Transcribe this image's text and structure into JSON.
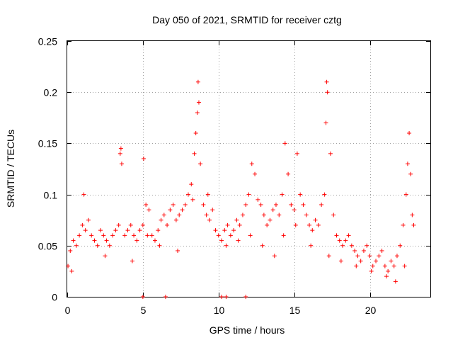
{
  "chart_data": {
    "type": "scatter",
    "title": "Day 050 of 2021, SRMTID for receiver cztg",
    "xlabel": "GPS time / hours",
    "ylabel": "SRMTID / TECUs",
    "xlim": [
      0,
      24
    ],
    "ylim": [
      0,
      0.25
    ],
    "grid": true,
    "marker": "plus",
    "color": "#ff0000",
    "xticks": [
      {
        "value": 0,
        "label": "0"
      },
      {
        "value": 5,
        "label": "5"
      },
      {
        "value": 10,
        "label": "10"
      },
      {
        "value": 15,
        "label": "15"
      },
      {
        "value": 20,
        "label": "20"
      }
    ],
    "yticks": [
      {
        "value": 0,
        "label": "0"
      },
      {
        "value": 0.05,
        "label": "0.05"
      },
      {
        "value": 0.1,
        "label": "0.1"
      },
      {
        "value": 0.15,
        "label": "0.15"
      },
      {
        "value": 0.2,
        "label": "0.2"
      },
      {
        "value": 0.25,
        "label": "0.25"
      }
    ],
    "series": [
      {
        "name": "SRMTID",
        "x": [
          0.05,
          0.2,
          0.4,
          0.6,
          0.8,
          1.0,
          1.2,
          1.4,
          1.6,
          1.8,
          2.0,
          2.2,
          2.4,
          2.6,
          2.8,
          3.0,
          3.2,
          3.4,
          3.5,
          3.55,
          3.6,
          3.8,
          4.0,
          4.2,
          4.4,
          4.6,
          4.8,
          5.0,
          5.05,
          5.2,
          5.4,
          5.6,
          5.8,
          6.0,
          6.2,
          6.4,
          6.6,
          6.8,
          7.0,
          7.2,
          7.4,
          7.6,
          7.8,
          8.0,
          8.2,
          8.4,
          8.5,
          8.6,
          8.65,
          8.7,
          8.8,
          9.0,
          9.2,
          9.4,
          9.6,
          9.8,
          10.0,
          10.2,
          10.4,
          10.6,
          10.8,
          11.0,
          11.2,
          11.4,
          11.6,
          11.8,
          12.0,
          12.2,
          12.4,
          12.6,
          12.8,
          13.0,
          13.2,
          13.4,
          13.6,
          13.8,
          14.0,
          14.2,
          14.4,
          14.6,
          14.8,
          15.0,
          15.2,
          15.4,
          15.6,
          15.8,
          16.0,
          16.2,
          16.4,
          16.6,
          16.8,
          17.0,
          17.1,
          17.15,
          17.2,
          17.4,
          17.6,
          17.8,
          18.0,
          18.2,
          18.4,
          18.6,
          18.8,
          19.0,
          19.2,
          19.4,
          19.6,
          19.8,
          20.0,
          20.2,
          20.4,
          20.6,
          20.8,
          21.0,
          21.2,
          21.4,
          21.6,
          21.8,
          22.0,
          22.2,
          22.4,
          22.5,
          22.6,
          22.7,
          22.8,
          22.9,
          0.3,
          1.1,
          2.5,
          4.3,
          5.3,
          6.1,
          7.3,
          8.3,
          9.3,
          10.5,
          11.3,
          12.1,
          12.9,
          13.7,
          14.3,
          15.1,
          16.1,
          17.3,
          18.1,
          19.1,
          20.1,
          21.1,
          21.7,
          22.3,
          5.0,
          6.5,
          10.2,
          10.5,
          11.8
        ],
        "y": [
          0.03,
          0.045,
          0.055,
          0.05,
          0.06,
          0.07,
          0.065,
          0.075,
          0.06,
          0.055,
          0.05,
          0.065,
          0.06,
          0.055,
          0.05,
          0.06,
          0.065,
          0.07,
          0.14,
          0.145,
          0.13,
          0.06,
          0.065,
          0.07,
          0.06,
          0.055,
          0.065,
          0.07,
          0.135,
          0.09,
          0.085,
          0.06,
          0.055,
          0.065,
          0.075,
          0.08,
          0.07,
          0.085,
          0.09,
          0.075,
          0.08,
          0.085,
          0.09,
          0.1,
          0.11,
          0.14,
          0.16,
          0.18,
          0.21,
          0.19,
          0.13,
          0.09,
          0.08,
          0.075,
          0.085,
          0.065,
          0.06,
          0.055,
          0.065,
          0.07,
          0.06,
          0.065,
          0.075,
          0.07,
          0.08,
          0.09,
          0.1,
          0.13,
          0.12,
          0.095,
          0.09,
          0.08,
          0.07,
          0.075,
          0.085,
          0.09,
          0.08,
          0.1,
          0.15,
          0.12,
          0.09,
          0.085,
          0.14,
          0.1,
          0.09,
          0.08,
          0.07,
          0.065,
          0.075,
          0.07,
          0.09,
          0.1,
          0.17,
          0.21,
          0.2,
          0.14,
          0.08,
          0.06,
          0.055,
          0.05,
          0.055,
          0.06,
          0.05,
          0.045,
          0.04,
          0.035,
          0.045,
          0.05,
          0.04,
          0.03,
          0.035,
          0.04,
          0.045,
          0.03,
          0.025,
          0.035,
          0.03,
          0.04,
          0.05,
          0.07,
          0.1,
          0.13,
          0.16,
          0.12,
          0.08,
          0.07,
          0.025,
          0.1,
          0.04,
          0.035,
          0.06,
          0.05,
          0.045,
          0.095,
          0.1,
          0.05,
          0.055,
          0.06,
          0.05,
          0.04,
          0.06,
          0.07,
          0.05,
          0.04,
          0.035,
          0.03,
          0.025,
          0.02,
          0.015,
          0.03,
          0.0,
          0.0,
          0.0,
          0.0,
          0.0
        ]
      }
    ]
  }
}
